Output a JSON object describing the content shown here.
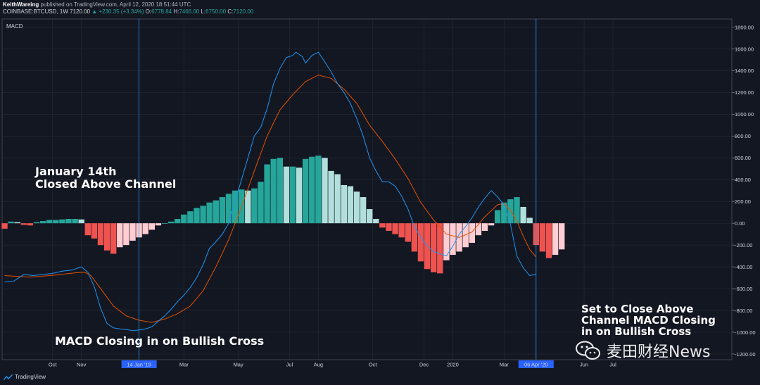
{
  "header": {
    "author": "KeithWareing",
    "published": "published on TradingView.com, April 12, 2020 18:51:44 UTC",
    "symbol": "COINBASE:BTCUSD, 1W",
    "price": "7120.00",
    "change": "▲ +230.35 (+3.34%)",
    "ohlc": {
      "o_label": "O:",
      "o": "6778.84",
      "h_label": "H:",
      "h": "7466.00",
      "l_label": "L:",
      "l": "6750.00",
      "c_label": "C:",
      "c": "7120.00"
    }
  },
  "colors": {
    "background": "#131722",
    "grid_line": "#2a2e39",
    "hist_pos_strong": "#26a69a",
    "hist_pos_weak": "#b2dfdb",
    "hist_neg_strong": "#ef5350",
    "hist_neg_weak": "#ffcdd2",
    "macd_line": "#2196f3",
    "signal_line": "#e65100",
    "marker": "#2196f3"
  },
  "annotations": {
    "a1_line1": "January 14th",
    "a1_line2": "Closed Above Channel",
    "a2": "MACD Closing in on Bullish Cross",
    "a3_line1": "Set to Close Above",
    "a3_line2": "Channel MACD Closing",
    "a3_line3": "in on Bullish Cross"
  },
  "watermark": {
    "text": "麦田财经News",
    "icon": "wechat-icon"
  },
  "footer": {
    "brand": "TradingView",
    "icon": "tradingview-logo-icon"
  },
  "chart_data": {
    "type": "bar",
    "indicator_label": "MACD",
    "y_axis": {
      "min": -1200,
      "max": 1800,
      "ticks": [
        1800,
        1600,
        1400,
        1200,
        1000,
        800,
        600,
        400,
        200,
        0,
        -200,
        -400,
        -600,
        -800,
        -1000,
        -1200
      ],
      "tick_labels": [
        "1800.00",
        "1600.00",
        "1400.00",
        "1200.00",
        "1000.00",
        "800.00",
        "600.00",
        "400.00",
        "200.00",
        "0.00",
        "-200.00",
        "-400.00",
        "-600.00",
        "-800.00",
        "-1000.00",
        "-1200.00"
      ]
    },
    "x_axis": {
      "start_week": 0,
      "end_week": 93,
      "labels": [
        {
          "week": 7.5,
          "text": "Oct"
        },
        {
          "week": 12,
          "text": "Nov"
        },
        {
          "week": 21,
          "text": "14 Jan '19",
          "highlight": true
        },
        {
          "week": 28,
          "text": "Mar"
        },
        {
          "week": 36.5,
          "text": "May"
        },
        {
          "week": 44.5,
          "text": "Jul"
        },
        {
          "week": 49,
          "text": "Aug"
        },
        {
          "week": 57.5,
          "text": "Oct"
        },
        {
          "week": 65.5,
          "text": "Dec"
        },
        {
          "week": 70,
          "text": "2020"
        },
        {
          "week": 78,
          "text": "Mar"
        },
        {
          "week": 83,
          "text": "06 Apr '20",
          "highlight": true
        },
        {
          "week": 90.5,
          "text": "Jun"
        },
        {
          "week": 95,
          "text": "Jul"
        }
      ]
    },
    "markers": [
      {
        "week": 21,
        "label": "14 Jan '19"
      },
      {
        "week": 83,
        "label": "06 Apr '20"
      }
    ],
    "histogram": [
      -50,
      15,
      10,
      -15,
      -20,
      10,
      20,
      30,
      30,
      35,
      40,
      40,
      35,
      -110,
      -140,
      -200,
      -250,
      -280,
      -220,
      -200,
      -160,
      -130,
      -100,
      -60,
      -20,
      0,
      15,
      40,
      80,
      110,
      140,
      160,
      190,
      210,
      240,
      270,
      300,
      310,
      300,
      320,
      380,
      540,
      590,
      600,
      520,
      520,
      510,
      590,
      610,
      620,
      600,
      480,
      450,
      350,
      340,
      290,
      240,
      130,
      40,
      -40,
      -70,
      -100,
      -130,
      -170,
      -260,
      -350,
      -420,
      -450,
      -460,
      -340,
      -290,
      -260,
      -220,
      -180,
      -110,
      -70,
      -20,
      120,
      190,
      220,
      240,
      150,
      50,
      -200,
      -260,
      -320,
      -290,
      -240
    ],
    "macd": {
      "name": "MACD",
      "values": [
        [
          0,
          -540
        ],
        [
          1.5,
          -530
        ],
        [
          3,
          -470
        ],
        [
          4.5,
          -480
        ],
        [
          6,
          -470
        ],
        [
          7.5,
          -460
        ],
        [
          9,
          -440
        ],
        [
          10.5,
          -430
        ],
        [
          12,
          -400
        ],
        [
          13,
          -450
        ],
        [
          14,
          -580
        ],
        [
          15,
          -780
        ],
        [
          16,
          -920
        ],
        [
          17,
          -960
        ],
        [
          18,
          -970
        ],
        [
          19,
          -975
        ],
        [
          20,
          -985
        ],
        [
          21,
          -980
        ],
        [
          22,
          -970
        ],
        [
          23,
          -950
        ],
        [
          24,
          -900
        ],
        [
          25,
          -850
        ],
        [
          26,
          -790
        ],
        [
          27,
          -720
        ],
        [
          28,
          -660
        ],
        [
          29,
          -590
        ],
        [
          30,
          -500
        ],
        [
          31,
          -380
        ],
        [
          32,
          -230
        ],
        [
          33,
          -170
        ],
        [
          34,
          -100
        ],
        [
          35,
          0
        ],
        [
          36,
          200
        ],
        [
          37,
          400
        ],
        [
          38,
          600
        ],
        [
          39,
          800
        ],
        [
          40,
          880
        ],
        [
          41,
          1050
        ],
        [
          42,
          1280
        ],
        [
          43,
          1420
        ],
        [
          44,
          1520
        ],
        [
          45,
          1540
        ],
        [
          45.5,
          1570
        ],
        [
          46.5,
          1530
        ],
        [
          47,
          1470
        ],
        [
          48,
          1540
        ],
        [
          49,
          1570
        ],
        [
          50,
          1480
        ],
        [
          51,
          1390
        ],
        [
          52,
          1280
        ],
        [
          53,
          1200
        ],
        [
          54,
          1100
        ],
        [
          55,
          960
        ],
        [
          56,
          800
        ],
        [
          57,
          600
        ],
        [
          58,
          480
        ],
        [
          59,
          380
        ],
        [
          60,
          380
        ],
        [
          61,
          340
        ],
        [
          62,
          250
        ],
        [
          63,
          130
        ],
        [
          64,
          -30
        ],
        [
          65,
          -130
        ],
        [
          66,
          -210
        ],
        [
          67,
          -260
        ],
        [
          68,
          -280
        ],
        [
          69,
          -300
        ],
        [
          70,
          -210
        ],
        [
          71,
          -100
        ],
        [
          72,
          -30
        ],
        [
          73,
          50
        ],
        [
          74,
          150
        ],
        [
          75,
          230
        ],
        [
          76,
          300
        ],
        [
          77,
          240
        ],
        [
          78,
          170
        ],
        [
          79,
          -10
        ],
        [
          80,
          -300
        ],
        [
          81,
          -410
        ],
        [
          82,
          -480
        ],
        [
          83,
          -470
        ]
      ]
    },
    "signal": {
      "name": "Signal",
      "values": [
        [
          0,
          -480
        ],
        [
          4,
          -495
        ],
        [
          8,
          -475
        ],
        [
          11,
          -455
        ],
        [
          12.5,
          -450
        ],
        [
          13.5,
          -480
        ],
        [
          15,
          -600
        ],
        [
          17,
          -760
        ],
        [
          19,
          -850
        ],
        [
          21,
          -890
        ],
        [
          23,
          -910
        ],
        [
          25,
          -880
        ],
        [
          27,
          -830
        ],
        [
          29,
          -760
        ],
        [
          31,
          -620
        ],
        [
          33,
          -400
        ],
        [
          35,
          -150
        ],
        [
          37,
          150
        ],
        [
          39,
          480
        ],
        [
          41,
          800
        ],
        [
          43,
          1040
        ],
        [
          45,
          1180
        ],
        [
          47,
          1300
        ],
        [
          49,
          1360
        ],
        [
          51,
          1330
        ],
        [
          53,
          1230
        ],
        [
          55,
          1100
        ],
        [
          57,
          900
        ],
        [
          59,
          750
        ],
        [
          61,
          590
        ],
        [
          63,
          410
        ],
        [
          65,
          190
        ],
        [
          67,
          30
        ],
        [
          69,
          -100
        ],
        [
          71,
          -130
        ],
        [
          73,
          -80
        ],
        [
          75,
          60
        ],
        [
          77,
          170
        ],
        [
          78,
          180
        ],
        [
          79,
          120
        ],
        [
          80,
          20
        ],
        [
          81,
          -120
        ],
        [
          82,
          -240
        ],
        [
          83,
          -310
        ]
      ]
    }
  }
}
